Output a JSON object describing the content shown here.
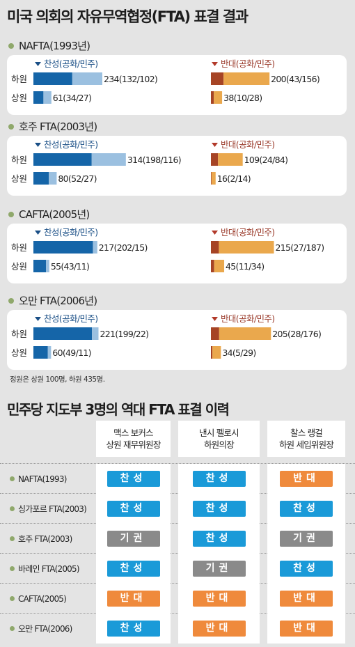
{
  "title": "미국 의회의 자유무역협정(FTA) 표결 결과",
  "legend": {
    "yes": "찬성(공화/민주)",
    "no": "반대(공화/민주)"
  },
  "chambers": [
    "하원",
    "상원"
  ],
  "colors": {
    "yes_rep": "#1565a8",
    "yes_dem": "#9bc0e0",
    "no_rep": "#a64425",
    "no_dem": "#eaa84d",
    "yes_marker": "#1a4f86",
    "no_marker": "#b23a2a",
    "bullet": "#8fa86b"
  },
  "chart_data": [
    {
      "type": "bar",
      "title": "NAFTA(1993년)",
      "categories": [
        "하원",
        "상원"
      ],
      "yes": [
        {
          "total": 234,
          "rep": 132,
          "dem": 102
        },
        {
          "total": 61,
          "rep": 34,
          "dem": 27
        }
      ],
      "no": [
        {
          "total": 200,
          "rep": 43,
          "dem": 156
        },
        {
          "total": 38,
          "rep": 10,
          "dem": 28
        }
      ],
      "yes_labels": [
        "234(132/102)",
        "61(34/27)"
      ],
      "no_labels": [
        "200(43/156)",
        "38(10/28)"
      ]
    },
    {
      "type": "bar",
      "title": "호주 FTA(2003년)",
      "categories": [
        "하원",
        "상원"
      ],
      "yes": [
        {
          "total": 314,
          "rep": 198,
          "dem": 116
        },
        {
          "total": 80,
          "rep": 52,
          "dem": 27
        }
      ],
      "no": [
        {
          "total": 109,
          "rep": 24,
          "dem": 84
        },
        {
          "total": 16,
          "rep": 2,
          "dem": 14
        }
      ],
      "yes_labels": [
        "314(198/116)",
        "80(52/27)"
      ],
      "no_labels": [
        "109(24/84)",
        "16(2/14)"
      ]
    },
    {
      "type": "bar",
      "title": "CAFTA(2005년)",
      "categories": [
        "하원",
        "상원"
      ],
      "yes": [
        {
          "total": 217,
          "rep": 202,
          "dem": 15
        },
        {
          "total": 55,
          "rep": 43,
          "dem": 11
        }
      ],
      "no": [
        {
          "total": 215,
          "rep": 27,
          "dem": 187
        },
        {
          "total": 45,
          "rep": 11,
          "dem": 34
        }
      ],
      "yes_labels": [
        "217(202/15)",
        "55(43/11)"
      ],
      "no_labels": [
        "215(27/187)",
        "45(11/34)"
      ]
    },
    {
      "type": "bar",
      "title": "오만 FTA(2006년)",
      "categories": [
        "하원",
        "상원"
      ],
      "yes": [
        {
          "total": 221,
          "rep": 199,
          "dem": 22
        },
        {
          "total": 60,
          "rep": 49,
          "dem": 11
        }
      ],
      "no": [
        {
          "total": 205,
          "rep": 28,
          "dem": 176
        },
        {
          "total": 34,
          "rep": 5,
          "dem": 29
        }
      ],
      "yes_labels": [
        "221(199/22)",
        "60(49/11)"
      ],
      "no_labels": [
        "205(28/176)",
        "34(5/29)"
      ]
    },
    {
      "type": "table",
      "title": "민주당 지도부 3명의 역대 FTA 표결 이력",
      "columns": [
        {
          "line1": "맥스 보커스",
          "line2": "상원 재무위원장"
        },
        {
          "line1": "낸시 펠로시",
          "line2": "하원의장"
        },
        {
          "line1": "찰스 랭걸",
          "line2": "하원 세입위원장"
        }
      ],
      "rows": [
        {
          "label": "NAFTA(1993)",
          "votes": [
            "찬성",
            "찬성",
            "반대"
          ]
        },
        {
          "label": "싱가포르 FTA(2003)",
          "votes": [
            "찬성",
            "찬성",
            "찬성"
          ]
        },
        {
          "label": "호주 FTA(2003)",
          "votes": [
            "기권",
            "찬성",
            "기권"
          ]
        },
        {
          "label": "바레인 FTA(2005)",
          "votes": [
            "찬성",
            "기권",
            "찬성"
          ]
        },
        {
          "label": "CAFTA(2005)",
          "votes": [
            "반대",
            "반대",
            "반대"
          ]
        },
        {
          "label": "오만 FTA(2006)",
          "votes": [
            "찬성",
            "반대",
            "반대"
          ]
        }
      ],
      "vote_colors": {
        "찬성": "#1a9ad8",
        "반대": "#ef8a3c",
        "기권": "#8a8a8a"
      }
    }
  ],
  "note": "정원은 상원 100명, 하원 435명."
}
